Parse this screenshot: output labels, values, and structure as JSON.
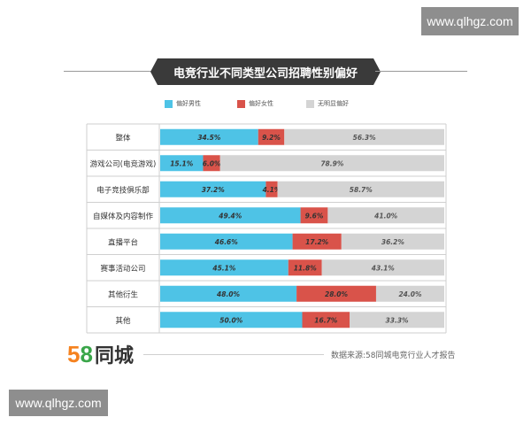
{
  "watermark": {
    "text": "www.qlhgz.com"
  },
  "title": "电竞行业不同类型公司招聘性别偏好",
  "chart_data": {
    "type": "bar",
    "orientation": "horizontal",
    "stacked": true,
    "normalized": true,
    "categories": [
      "整体",
      "游戏公司(电竞游戏)",
      "电子竞技俱乐部",
      "自媒体及内容制作",
      "直播平台",
      "赛事活动公司",
      "其他衍生",
      "其他"
    ],
    "series": [
      {
        "name": "偏好男性",
        "color": "#4ec3e6",
        "values": [
          34.5,
          15.1,
          37.2,
          49.4,
          46.6,
          45.1,
          48.0,
          50.0
        ],
        "labels": [
          "34.5%",
          "15.1%",
          "37.2%",
          "49.4%",
          "46.6%",
          "45.1%",
          "48.0%",
          "50.0%"
        ]
      },
      {
        "name": "偏好女性",
        "color": "#d9534a",
        "values": [
          9.2,
          6.0,
          4.1,
          9.6,
          17.2,
          11.8,
          28.0,
          16.7
        ],
        "labels": [
          "9.2%",
          "6.0%",
          "4.1%",
          "9.6%",
          "17.2%",
          "11.8%",
          "28.0%",
          "16.7%"
        ]
      },
      {
        "name": "无明显偏好",
        "color": "#d4d4d4",
        "values": [
          56.3,
          78.9,
          58.7,
          41.0,
          36.2,
          43.1,
          24.0,
          33.3
        ],
        "labels": [
          "56.3%",
          "78.9%",
          "58.7%",
          "41.0%",
          "36.2%",
          "43.1%",
          "24.0%",
          "33.3%"
        ]
      }
    ],
    "xlim": [
      0,
      100
    ],
    "legend": "top",
    "grid": false
  },
  "footer": {
    "logo_number_5": "5",
    "logo_number_8": "8",
    "logo_text": "同城",
    "source": "数据来源:58同城电竞行业人才报告"
  }
}
